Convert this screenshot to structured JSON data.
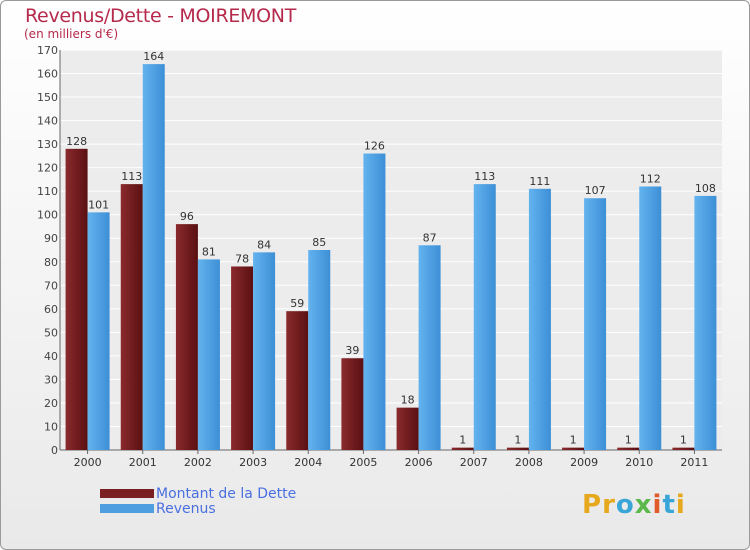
{
  "chart_data": {
    "type": "bar",
    "title": "Revenus/Dette - MOIREMONT",
    "subtitle": "(en milliers d'€)",
    "categories": [
      "2000",
      "2001",
      "2002",
      "2003",
      "2004",
      "2005",
      "2006",
      "2007",
      "2008",
      "2009",
      "2010",
      "2011"
    ],
    "series": [
      {
        "name": "Montant de la Dette",
        "color": "#7a1f22",
        "values": [
          128,
          113,
          96,
          78,
          59,
          39,
          18,
          1,
          1,
          1,
          1,
          1
        ]
      },
      {
        "name": "Revenus",
        "color": "#4f9fe0",
        "values": [
          101,
          164,
          81,
          84,
          85,
          126,
          87,
          113,
          111,
          107,
          112,
          108
        ]
      }
    ],
    "ylim": [
      0,
      170
    ],
    "yticks": [
      0,
      10,
      20,
      30,
      40,
      50,
      60,
      70,
      80,
      90,
      100,
      110,
      120,
      130,
      140,
      150,
      160,
      170
    ],
    "grid": true,
    "xlabel": "",
    "ylabel": ""
  },
  "branding": {
    "logo_text": [
      "P",
      "r",
      "o",
      "x",
      "i",
      "t",
      "i"
    ],
    "logo_colors": [
      "#e6a81c",
      "#e6a81c",
      "#3aa6d8",
      "#5bb84b",
      "#e05a2a",
      "#3aa6d8",
      "#e6a81c"
    ]
  }
}
